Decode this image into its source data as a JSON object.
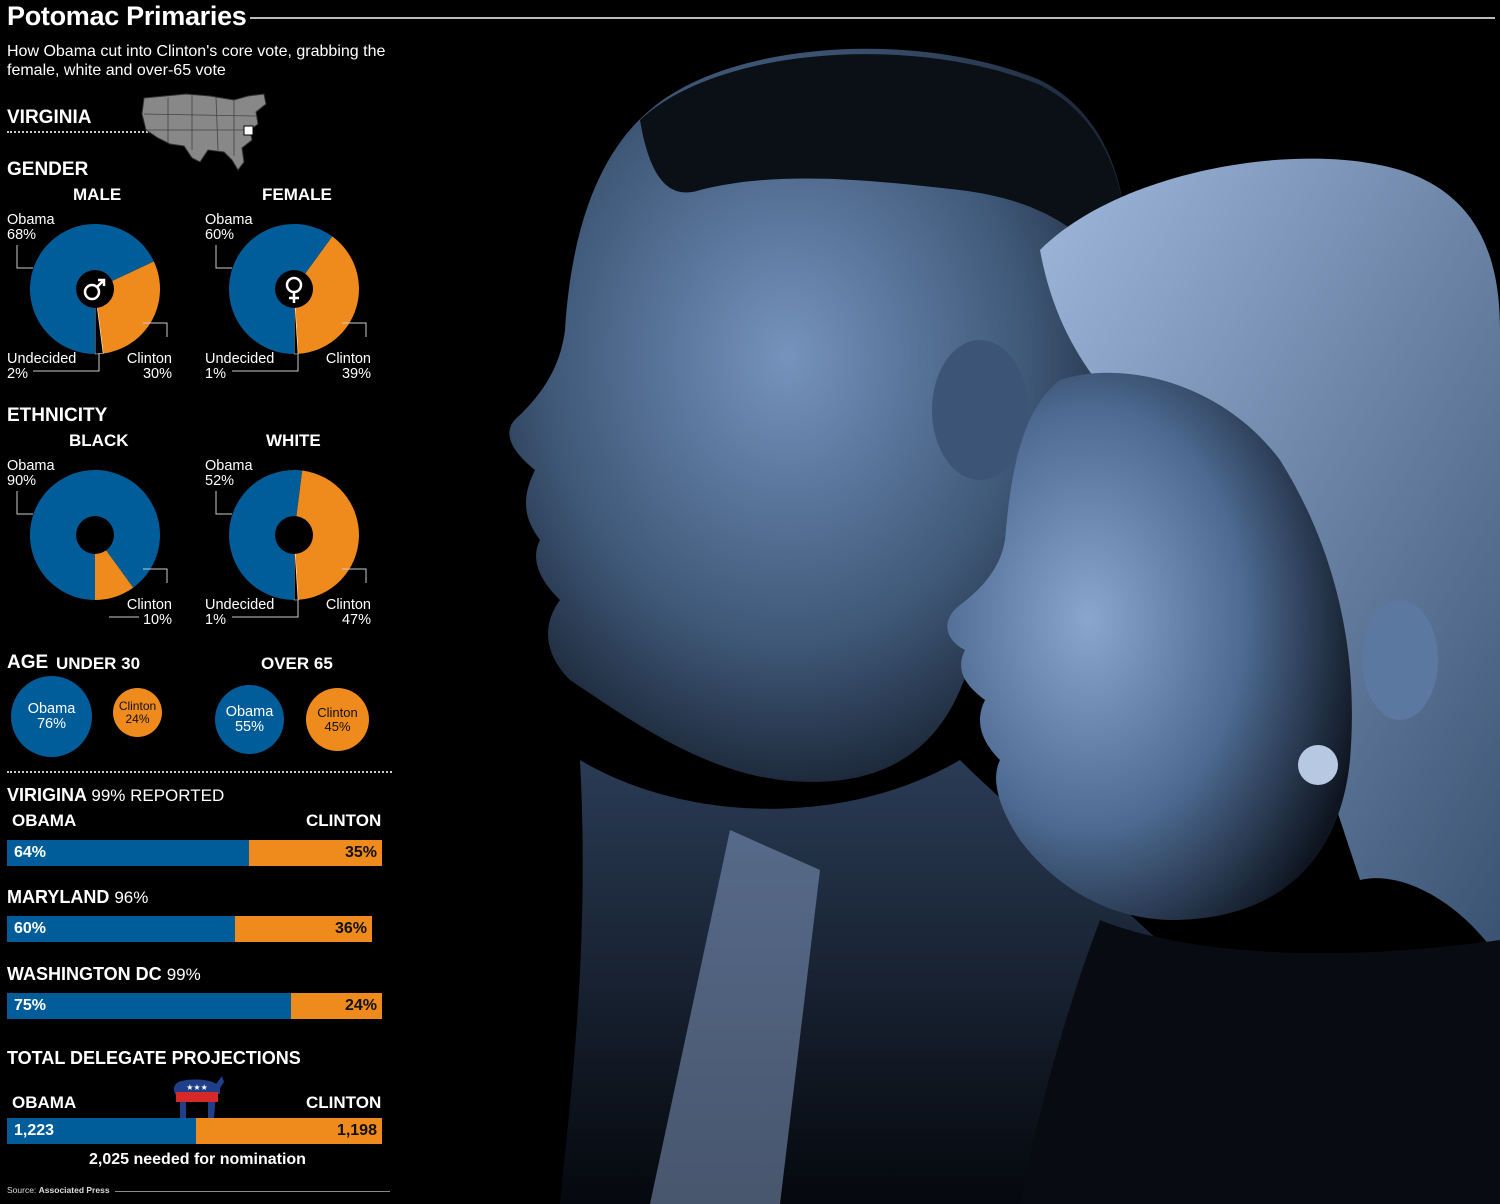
{
  "title": "Potomac Primaries",
  "subtitle": "How Obama cut into Clinton's core vote, grabbing the female, white and over-65 vote",
  "colors": {
    "obama": "#005d9a",
    "clinton": "#ef8a1c",
    "background": "#000000",
    "photo_tint": "#6f8fb8"
  },
  "chart_data": [
    {
      "type": "pie",
      "group": "Gender",
      "title": "MALE",
      "icon": "male-symbol-icon",
      "slices": [
        {
          "name": "Obama",
          "value": 68
        },
        {
          "name": "Clinton",
          "value": 30
        },
        {
          "name": "Undecided",
          "value": 2
        }
      ]
    },
    {
      "type": "pie",
      "group": "Gender",
      "title": "FEMALE",
      "icon": "female-symbol-icon",
      "slices": [
        {
          "name": "Obama",
          "value": 60
        },
        {
          "name": "Clinton",
          "value": 39
        },
        {
          "name": "Undecided",
          "value": 1
        }
      ]
    },
    {
      "type": "pie",
      "group": "Ethnicity",
      "title": "BLACK",
      "slices": [
        {
          "name": "Obama",
          "value": 90
        },
        {
          "name": "Clinton",
          "value": 10
        }
      ]
    },
    {
      "type": "pie",
      "group": "Ethnicity",
      "title": "WHITE",
      "slices": [
        {
          "name": "Obama",
          "value": 52
        },
        {
          "name": "Clinton",
          "value": 47
        },
        {
          "name": "Undecided",
          "value": 1
        }
      ]
    },
    {
      "type": "bubble",
      "group": "Age",
      "title": "UNDER 30",
      "series": [
        {
          "name": "Obama",
          "value": 76
        },
        {
          "name": "Clinton",
          "value": 24
        }
      ]
    },
    {
      "type": "bubble",
      "group": "Age",
      "title": "OVER 65",
      "series": [
        {
          "name": "Obama",
          "value": 55
        },
        {
          "name": "Clinton",
          "value": 45
        }
      ]
    },
    {
      "type": "bar",
      "orientation": "horizontal-stacked",
      "categories": [
        "VIRIGINA",
        "MARYLAND",
        "WASHINGTON DC"
      ],
      "reported": [
        "99% REPORTED",
        "96%",
        "99%"
      ],
      "series": [
        {
          "name": "OBAMA",
          "values": [
            64,
            60,
            75
          ]
        },
        {
          "name": "CLINTON",
          "values": [
            35,
            36,
            24
          ]
        }
      ]
    },
    {
      "type": "bar",
      "orientation": "horizontal-stacked",
      "title": "TOTAL DELEGATE PROJECTIONS",
      "categories": [
        "Delegates"
      ],
      "series": [
        {
          "name": "OBAMA",
          "values": [
            1223
          ]
        },
        {
          "name": "CLINTON",
          "values": [
            1198
          ]
        }
      ],
      "annotation": "2,025 needed for nomination"
    }
  ],
  "labels": {
    "virginia": "VIRGINIA",
    "gender": "GENDER",
    "male": "MALE",
    "female": "FEMALE",
    "ethnicity": "ETHNICITY",
    "black": "BLACK",
    "white": "WHITE",
    "age": "AGE",
    "under30": "UNDER 30",
    "over65": "OVER 65",
    "obama": "Obama",
    "clinton": "Clinton",
    "undecided": "Undecided",
    "obama_caps": "OBAMA",
    "clinton_caps": "CLINTON",
    "virigina": "VIRIGINA",
    "virigina_reported": "99% REPORTED",
    "maryland": "MARYLAND",
    "maryland_reported": "96%",
    "dc": "WASHINGTON DC",
    "dc_reported": "99%",
    "delegates_title": "TOTAL DELEGATE PROJECTIONS",
    "delegates_obama": "1,223",
    "delegates_clinton": "1,198",
    "nomination_note": "2,025 needed for nomination",
    "source_prefix": "Source:",
    "source_name": "Associated Press"
  },
  "pct_labels": {
    "male_obama": "68%",
    "male_clinton": "30%",
    "male_undecided": "2%",
    "female_obama": "60%",
    "female_clinton": "39%",
    "female_undecided": "1%",
    "black_obama": "90%",
    "black_clinton": "10%",
    "white_obama": "52%",
    "white_clinton": "47%",
    "white_undecided": "1%",
    "u30_obama": "76%",
    "u30_clinton": "24%",
    "o65_obama": "55%",
    "o65_clinton": "45%",
    "va_obama": "64%",
    "va_clinton": "35%",
    "md_obama": "60%",
    "md_clinton": "36%",
    "dc_obama": "75%",
    "dc_clinton": "24%"
  },
  "icons": {
    "us_map": "us-map-icon",
    "male": "male-symbol-icon",
    "female": "female-symbol-icon",
    "donkey": "democratic-donkey-icon",
    "photo": "candidates-photo"
  }
}
